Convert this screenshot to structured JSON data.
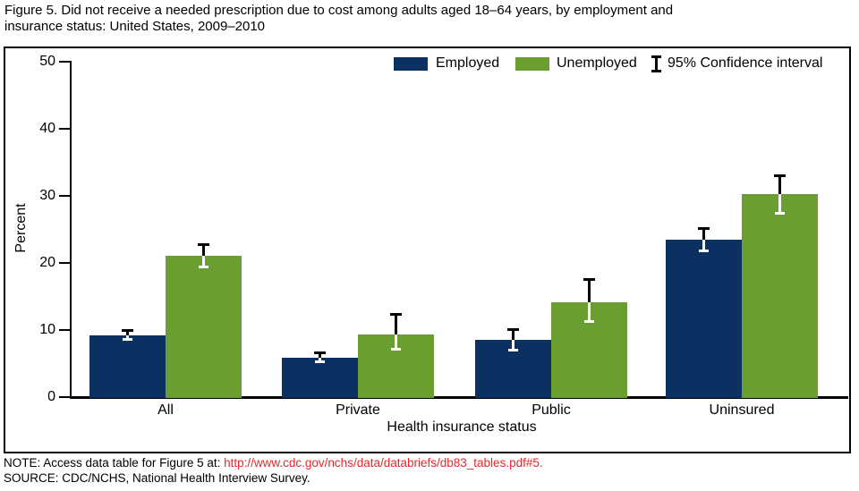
{
  "header": {
    "line1": "Figure 5. Did not receive a needed prescription due to cost among adults aged 18–64 years, by employment and",
    "line2": "insurance status: United States, 2009–2010"
  },
  "legend": {
    "employed": "Employed",
    "unemployed": "Unemployed",
    "confidence": "95% Confidence interval"
  },
  "colors": {
    "employed": "#0a3161",
    "unemployed": "#6b9e30",
    "axis": "#000000",
    "link": "#e8272c",
    "errorbar_outside": "#000000",
    "errorbar_inside": "#ffffff"
  },
  "chart_data": {
    "type": "bar",
    "title": "Figure 5. Did not receive a needed prescription due to cost among adults aged 18–64 years, by employment and insurance status: United States, 2009–2010",
    "categories": [
      "All",
      "Private",
      "Public",
      "Uninsured"
    ],
    "series": [
      {
        "name": "Employed",
        "color": "#0a3161",
        "values": [
          9.1,
          5.8,
          8.4,
          23.3
        ],
        "ci_low": [
          8.5,
          5.2,
          7.0,
          21.7
        ],
        "ci_high": [
          9.8,
          6.4,
          9.9,
          24.9
        ]
      },
      {
        "name": "Unemployed",
        "color": "#6b9e30",
        "values": [
          20.9,
          9.2,
          14.0,
          30.2
        ],
        "ci_low": [
          19.3,
          7.1,
          11.2,
          27.4
        ],
        "ci_high": [
          22.5,
          12.2,
          17.4,
          32.8
        ]
      }
    ],
    "error_bars": "95% Confidence interval",
    "xlabel": "Health insurance status",
    "ylabel": "Percent",
    "ylim": [
      0,
      50
    ],
    "yticks": [
      0,
      10,
      20,
      30,
      40,
      50
    ],
    "grid": false,
    "legend_position": "top-inside"
  },
  "footnotes": {
    "note_prefix": "NOTE: Access data table for Figure 5 at: ",
    "note_link": "http://www.cdc.gov/nchs/data/databriefs/db83_tables.pdf#5.",
    "source": "SOURCE: CDC/NCHS, National Health Interview Survey."
  }
}
